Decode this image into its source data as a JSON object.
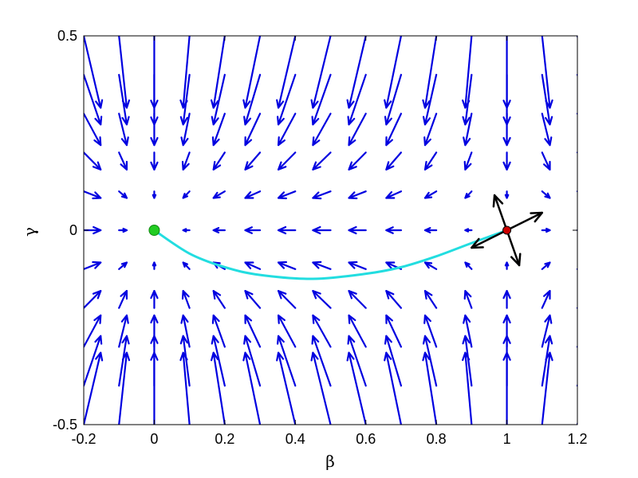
{
  "chart_data": {
    "type": "quiver",
    "title": "",
    "xlabel": "β",
    "ylabel": "γ",
    "xlim": [
      -0.2,
      1.2
    ],
    "ylim": [
      -0.5,
      0.5
    ],
    "xticks": [
      -0.2,
      0,
      0.2,
      0.4,
      0.6,
      0.8,
      1,
      1.2
    ],
    "xtick_labels": [
      "-0.2",
      "0",
      "0.2",
      "0.4",
      "0.6",
      "0.8",
      "1",
      "1.2"
    ],
    "yticks": [
      -0.5,
      0,
      0.5
    ],
    "ytick_labels": [
      "-0.5",
      "0",
      "0.5"
    ],
    "grid": false,
    "vector_field": {
      "color": "#0000e0",
      "x_start": -0.2,
      "x_step": 0.1,
      "x_count": 15,
      "y_start": 0.5,
      "y_step": -0.1,
      "y_count": 11,
      "scale": 0.2
    },
    "trajectory": {
      "color": "#22dde0",
      "points": [
        [
          0,
          0
        ],
        [
          0.1,
          -0.06
        ],
        [
          0.2,
          -0.095
        ],
        [
          0.3,
          -0.115
        ],
        [
          0.45,
          -0.125
        ],
        [
          0.6,
          -0.112
        ],
        [
          0.7,
          -0.095
        ],
        [
          0.8,
          -0.067
        ],
        [
          0.9,
          -0.033
        ],
        [
          1.0,
          0
        ]
      ]
    },
    "start_point": {
      "x": 0,
      "y": 0,
      "color": "#22cc22"
    },
    "saddle_point": {
      "x": 1,
      "y": 0,
      "color": "#cc0000"
    },
    "eigenvectors": {
      "color": "#000000",
      "vectors": [
        {
          "dx": 0.1,
          "dy": 0.045
        },
        {
          "dx": -0.1,
          "dy": -0.045
        },
        {
          "dx": -0.035,
          "dy": 0.09
        },
        {
          "dx": 0.035,
          "dy": -0.09
        }
      ]
    }
  }
}
